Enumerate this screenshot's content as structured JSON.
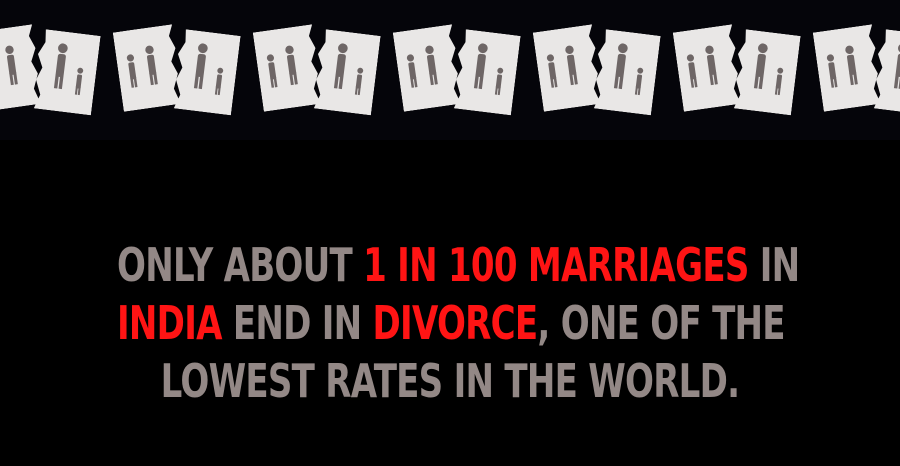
{
  "decoration": {
    "icon": "torn-family-photo-icon",
    "count": 7,
    "paper_color": "#e9e7e6",
    "figure_color": "#6e6666"
  },
  "headline": {
    "line1": {
      "a": "ONLY ABOUT ",
      "b": "1 IN 100 MARRIAGES",
      "c": " IN"
    },
    "line2": {
      "a": "INDIA",
      "b": " END IN ",
      "c": "DIVORCE",
      "d": ", ONE OF THE"
    },
    "line3": {
      "a": "LOWEST RATES IN THE WORLD."
    }
  },
  "colors": {
    "background": "#000000",
    "text": "#938886",
    "highlight": "#ff1414"
  }
}
